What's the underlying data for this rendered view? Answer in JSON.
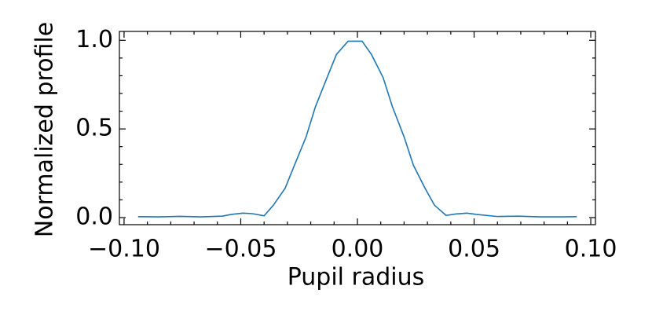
{
  "chart_data": {
    "type": "line",
    "xlabel": "Pupil radius",
    "ylabel": "Normalized profile",
    "series": [
      {
        "color": "#1f77b4",
        "x": [
          -0.094,
          -0.085,
          -0.076,
          -0.067,
          -0.058,
          -0.054,
          -0.049,
          -0.045,
          -0.04,
          -0.036,
          -0.031,
          -0.027,
          -0.022,
          -0.018,
          -0.013,
          -0.009,
          -0.004,
          0.002,
          0.006,
          0.011,
          0.015,
          0.02,
          0.024,
          0.029,
          0.033,
          0.038,
          0.042,
          0.047,
          0.051,
          0.06,
          0.069,
          0.078,
          0.087,
          0.094
        ],
        "values": [
          0.005,
          0.004,
          0.007,
          0.004,
          0.008,
          0.018,
          0.025,
          0.022,
          0.01,
          0.07,
          0.165,
          0.295,
          0.455,
          0.625,
          0.79,
          0.92,
          0.995,
          0.995,
          0.92,
          0.79,
          0.625,
          0.455,
          0.295,
          0.165,
          0.07,
          0.012,
          0.02,
          0.025,
          0.018,
          0.006,
          0.008,
          0.004,
          0.004,
          0.005
        ]
      }
    ],
    "xlim": [
      -0.102,
      0.102
    ],
    "ylim": [
      -0.04,
      1.05
    ],
    "xticks": [
      {
        "value": -0.1,
        "label": "−0.10"
      },
      {
        "value": -0.05,
        "label": "−0.05"
      },
      {
        "value": 0,
        "label": "0.00"
      },
      {
        "value": 0.05,
        "label": "0.05"
      },
      {
        "value": 0.1,
        "label": "0.10"
      }
    ],
    "yticks": [
      {
        "value": 0,
        "label": "0.0"
      },
      {
        "value": 0.5,
        "label": "0.5"
      },
      {
        "value": 1,
        "label": "1.0"
      }
    ],
    "xticks_minor": [
      -0.09,
      -0.08,
      -0.07,
      -0.06,
      -0.04,
      -0.03,
      -0.02,
      -0.01,
      0.01,
      0.02,
      0.03,
      0.04,
      0.06,
      0.07,
      0.08,
      0.09
    ],
    "yticks_minor": [
      0.1,
      0.2,
      0.3,
      0.4,
      0.6,
      0.7,
      0.8,
      0.9
    ]
  }
}
